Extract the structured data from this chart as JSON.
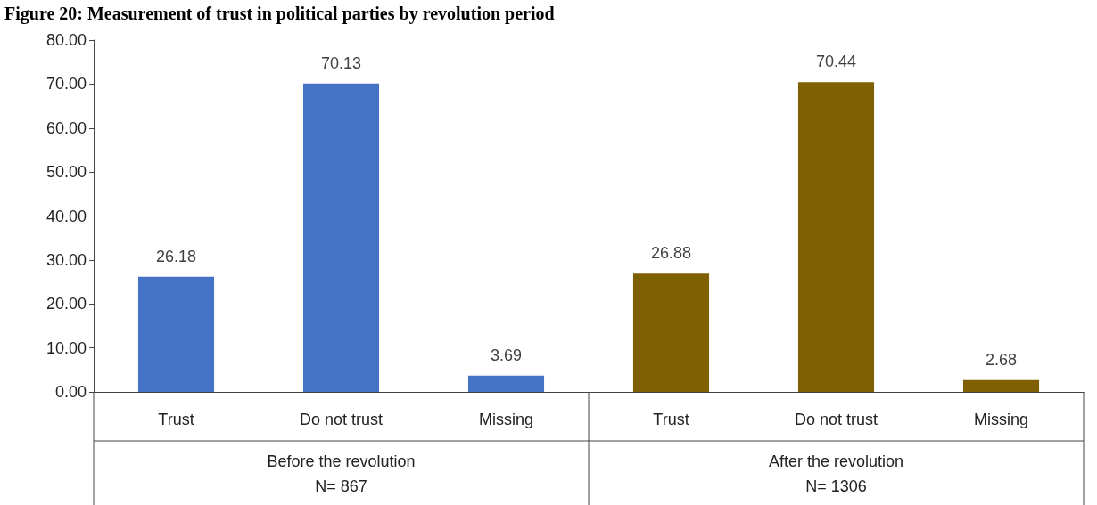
{
  "chart_data": {
    "type": "bar",
    "title": "Figure 20: Measurement of trust in political parties by revolution period",
    "categories": [
      "Trust",
      "Do not trust",
      "Missing",
      "Trust",
      "Do not trust",
      "Missing"
    ],
    "values": [
      26.18,
      70.13,
      3.69,
      26.88,
      70.44,
      2.68
    ],
    "colors": [
      "#4472c4",
      "#4472c4",
      "#4472c4",
      "#7f6000",
      "#7f6000",
      "#7f6000"
    ],
    "ylim": [
      0,
      80
    ],
    "yticks": [
      {
        "value": 0,
        "label": "0.00"
      },
      {
        "value": 10,
        "label": "10.00"
      },
      {
        "value": 20,
        "label": "20.00"
      },
      {
        "value": 30,
        "label": "30.00"
      },
      {
        "value": 40,
        "label": "40.00"
      },
      {
        "value": 50,
        "label": "50.00"
      },
      {
        "value": 60,
        "label": "60.00"
      },
      {
        "value": 70,
        "label": "70.00"
      },
      {
        "value": 80,
        "label": "80.00"
      }
    ],
    "annotations": [
      "Before the revolution\nN= 867",
      "After the revolution\nN= 1306"
    ],
    "data_labels": true,
    "grid": false
  }
}
